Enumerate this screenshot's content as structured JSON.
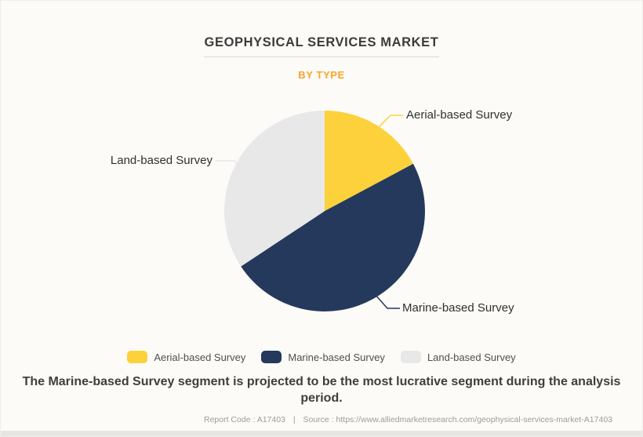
{
  "page": {
    "title": "GEOPHYSICAL SERVICES MARKET",
    "subtitle": "BY TYPE",
    "statement": "The Marine-based Survey segment is projected to be the most lucrative segment during the analysis period.",
    "footer": {
      "report_code": "Report Code : A17403",
      "separator": "|",
      "source": "Source : https://www.alliedmarketresearch.com/geophysical-services-market-A17403"
    },
    "colors": {
      "background": "#FDFBF7",
      "title_text": "#3B3B3B",
      "subtitle_orange": "#F9A42A",
      "legend_text": "#4F4F4F",
      "footer_text": "#9C9C9C"
    }
  },
  "chart_data": {
    "type": "pie",
    "title": "Geophysical Services Market",
    "subtitle": "By Type",
    "legend_position": "bottom",
    "direction": "clockwise",
    "start_angle_deg": 0,
    "values_are": "percent share estimated from slice arc angles",
    "slices": [
      {
        "label": "Aerial-based Survey",
        "value": 17.2,
        "color": "#FCD13B"
      },
      {
        "label": "Marine-based Survey",
        "value": 48.5,
        "color": "#25395D"
      },
      {
        "label": "Land-based Survey",
        "value": 34.3,
        "color": "#E8E8E8"
      }
    ]
  }
}
